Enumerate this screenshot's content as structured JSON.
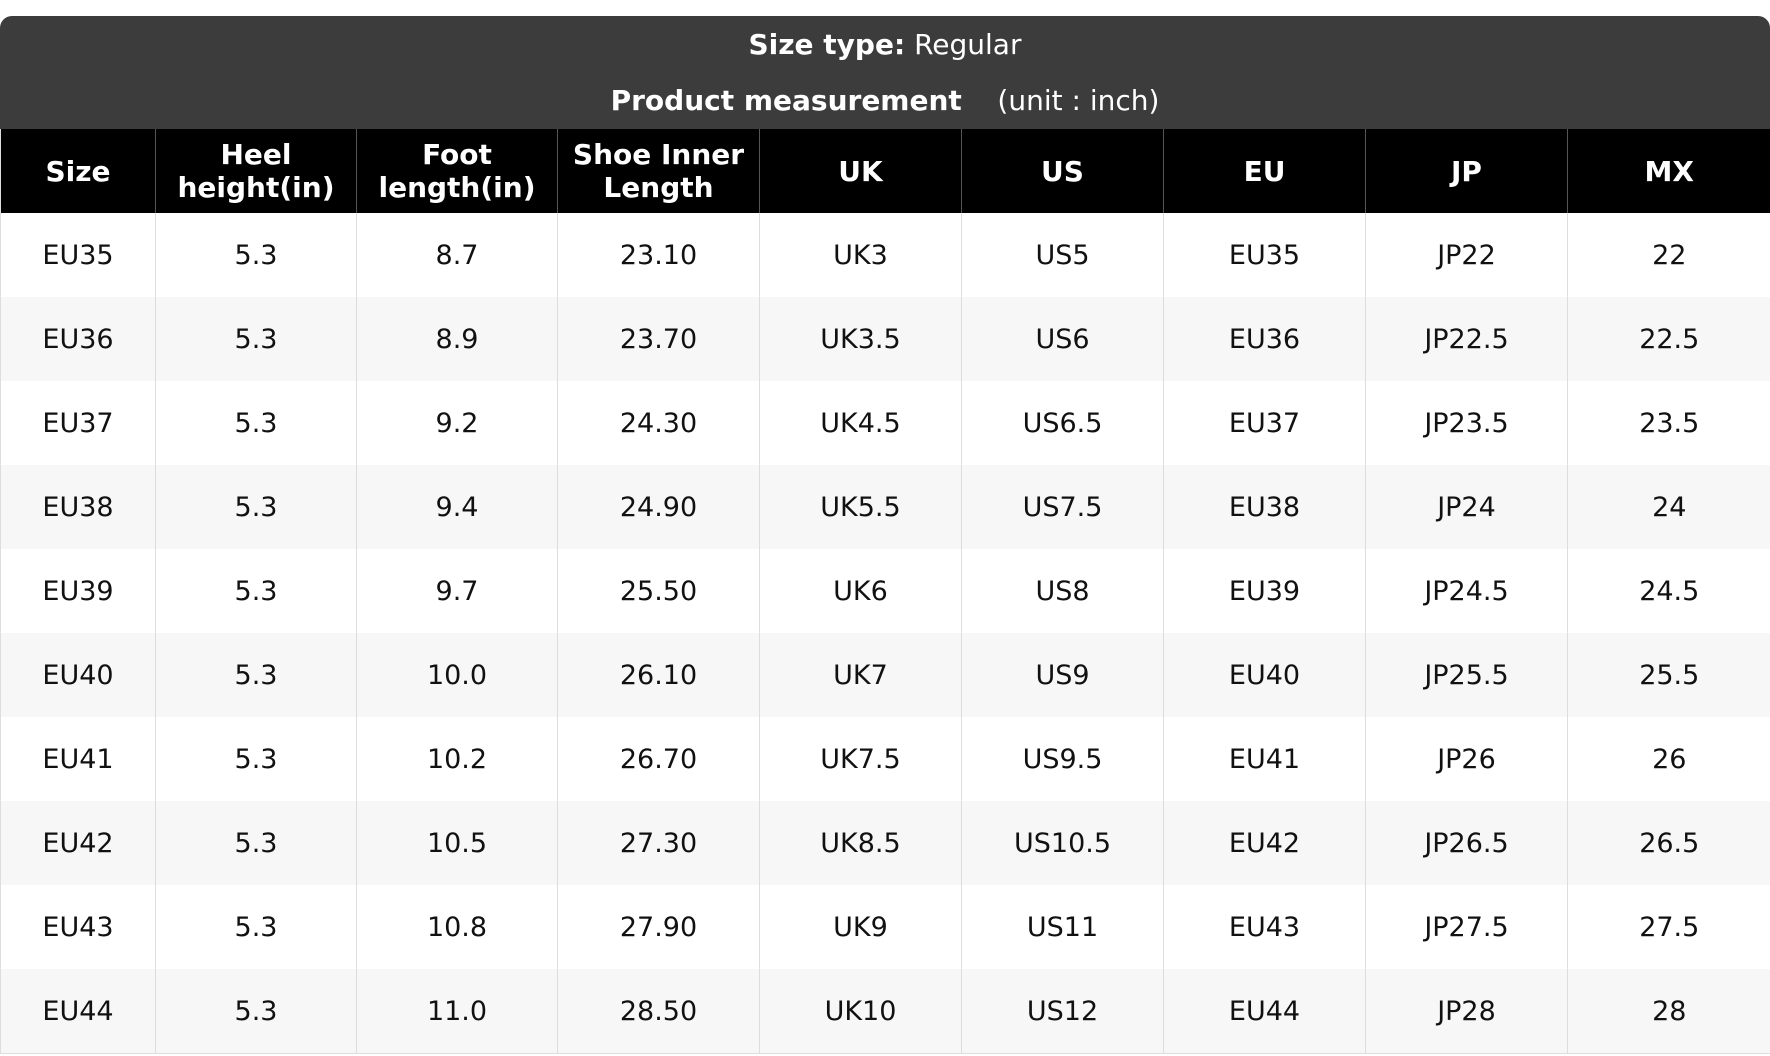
{
  "header": {
    "size_type_label": "Size type:",
    "size_type_value": "Regular",
    "measurement": "Product measurement",
    "unit": "(unit : inch)"
  },
  "table": {
    "columns": [
      "Size",
      "Heel height(in)",
      "Foot length(in)",
      "Shoe Inner Length",
      "UK",
      "US",
      "EU",
      "JP",
      "MX"
    ],
    "rows": [
      [
        "EU35",
        "5.3",
        "8.7",
        "23.10",
        "UK3",
        "US5",
        "EU35",
        "JP22",
        "22"
      ],
      [
        "EU36",
        "5.3",
        "8.9",
        "23.70",
        "UK3.5",
        "US6",
        "EU36",
        "JP22.5",
        "22.5"
      ],
      [
        "EU37",
        "5.3",
        "9.2",
        "24.30",
        "UK4.5",
        "US6.5",
        "EU37",
        "JP23.5",
        "23.5"
      ],
      [
        "EU38",
        "5.3",
        "9.4",
        "24.90",
        "UK5.5",
        "US7.5",
        "EU38",
        "JP24",
        "24"
      ],
      [
        "EU39",
        "5.3",
        "9.7",
        "25.50",
        "UK6",
        "US8",
        "EU39",
        "JP24.5",
        "24.5"
      ],
      [
        "EU40",
        "5.3",
        "10.0",
        "26.10",
        "UK7",
        "US9",
        "EU40",
        "JP25.5",
        "25.5"
      ],
      [
        "EU41",
        "5.3",
        "10.2",
        "26.70",
        "UK7.5",
        "US9.5",
        "EU41",
        "JP26",
        "26"
      ],
      [
        "EU42",
        "5.3",
        "10.5",
        "27.30",
        "UK8.5",
        "US10.5",
        "EU42",
        "JP26.5",
        "26.5"
      ],
      [
        "EU43",
        "5.3",
        "10.8",
        "27.90",
        "UK9",
        "US11",
        "EU43",
        "JP27.5",
        "27.5"
      ],
      [
        "EU44",
        "5.3",
        "11.0",
        "28.50",
        "UK10",
        "US12",
        "EU44",
        "JP28",
        "28"
      ]
    ]
  }
}
